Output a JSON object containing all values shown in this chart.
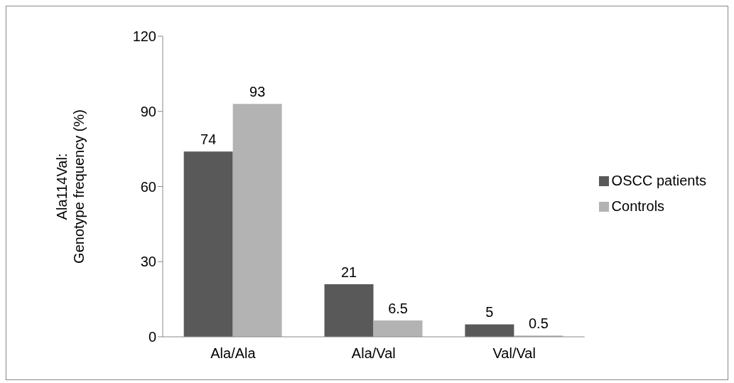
{
  "chart_data": {
    "type": "bar",
    "ylabel": "Ala114Val:\nGenotype frequency (%)",
    "categories": [
      "Ala/Ala",
      "Ala/Val",
      "Val/Val"
    ],
    "series": [
      {
        "name": "OSCC patients",
        "color": "#595959",
        "values": [
          74,
          21,
          5
        ]
      },
      {
        "name": "Controls",
        "color": "#b3b3b3",
        "values": [
          93,
          6.5,
          0.5
        ]
      }
    ],
    "ylim": [
      0,
      120
    ],
    "yticks": [
      0,
      30,
      60,
      90,
      120
    ],
    "grid": false,
    "legend": "right",
    "data_labels": true
  }
}
